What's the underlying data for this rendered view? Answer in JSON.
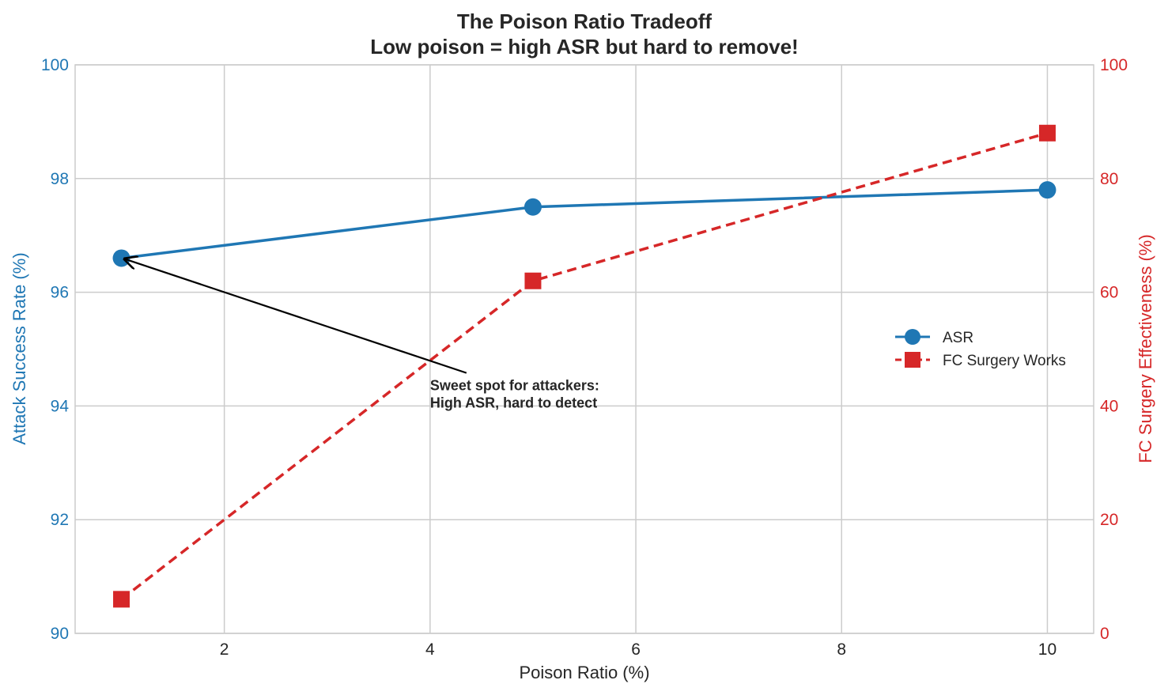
{
  "chart_data": {
    "type": "line",
    "title": "The Poison Ratio Tradeoff",
    "subtitle": "Low poison = high ASR but hard to remove!",
    "xlabel": "Poison Ratio (%)",
    "ylabel_left": "Attack Success Rate (%)",
    "ylabel_right": "FC Surgery Effectiveness (%)",
    "xlim": [
      0.55,
      10.45
    ],
    "ylim_left": [
      90,
      100
    ],
    "ylim_right": [
      0,
      100
    ],
    "x_ticks": [
      2,
      4,
      6,
      8,
      10
    ],
    "y_ticks_left": [
      90,
      92,
      94,
      96,
      98,
      100
    ],
    "y_ticks_right": [
      0,
      20,
      40,
      60,
      80,
      100
    ],
    "grid": true,
    "legend_position": "center-right",
    "x": [
      1,
      5,
      10
    ],
    "series": [
      {
        "name": "ASR",
        "axis": "left",
        "values": [
          96.6,
          97.5,
          97.8
        ],
        "color": "#1f77b4",
        "marker": "circle",
        "linestyle": "solid"
      },
      {
        "name": "FC Surgery Works",
        "axis": "right",
        "values": [
          6,
          62,
          88
        ],
        "color": "#d62728",
        "marker": "square",
        "linestyle": "dashed"
      }
    ],
    "annotation": {
      "text_line1": "Sweet spot for attackers:",
      "text_line2": "High ASR, hard to detect",
      "target_x": 1,
      "target_y": 96.6,
      "text_x": 4.0,
      "text_y": 94.4
    }
  }
}
